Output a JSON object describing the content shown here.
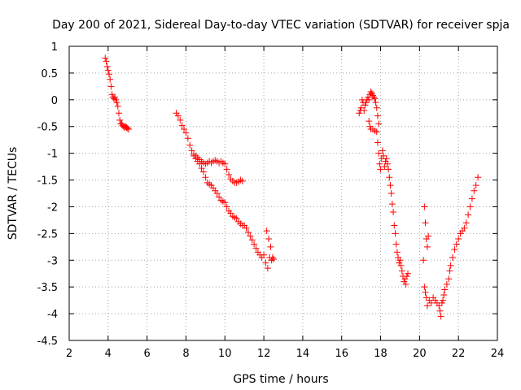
{
  "chart_data": {
    "type": "scatter",
    "title": "Day 200 of 2021, Sidereal Day-to-day VTEC variation (SDTVAR) for receiver spja",
    "xlabel": "GPS time / hours",
    "ylabel": "SDTVAR / TECUs",
    "xlim": [
      2,
      24
    ],
    "ylim": [
      -4.5,
      1
    ],
    "xticks": [
      "2",
      "4",
      "6",
      "8",
      "10",
      "12",
      "14",
      "16",
      "18",
      "20",
      "22",
      "24"
    ],
    "yticks": [
      "1",
      "0.5",
      "0",
      "-0.5",
      "-1",
      "-1.5",
      "-2",
      "-2.5",
      "-3",
      "-3.5",
      "-4",
      "-4.5"
    ],
    "grid": true,
    "marker": "plus",
    "color": "#ff0000",
    "series": [
      {
        "name": "segment-1",
        "points": [
          [
            3.85,
            0.78
          ],
          [
            3.9,
            0.72
          ],
          [
            3.95,
            0.62
          ],
          [
            4.0,
            0.55
          ],
          [
            4.05,
            0.48
          ],
          [
            4.1,
            0.38
          ],
          [
            4.15,
            0.25
          ],
          [
            4.2,
            0.1
          ],
          [
            4.25,
            0.05
          ],
          [
            4.3,
            0.02
          ],
          [
            4.35,
            0.05
          ],
          [
            4.4,
            0.0
          ],
          [
            4.45,
            -0.05
          ],
          [
            4.5,
            -0.12
          ],
          [
            4.55,
            -0.25
          ],
          [
            4.6,
            -0.38
          ],
          [
            4.65,
            -0.45
          ],
          [
            4.7,
            -0.45
          ],
          [
            4.75,
            -0.48
          ],
          [
            4.8,
            -0.5
          ],
          [
            4.85,
            -0.52
          ],
          [
            4.9,
            -0.5
          ],
          [
            4.95,
            -0.52
          ],
          [
            5.0,
            -0.53
          ],
          [
            5.05,
            -0.55
          ]
        ]
      },
      {
        "name": "segment-2",
        "points": [
          [
            7.5,
            -0.25
          ],
          [
            7.6,
            -0.3
          ],
          [
            7.7,
            -0.38
          ],
          [
            7.8,
            -0.48
          ],
          [
            7.9,
            -0.55
          ],
          [
            8.0,
            -0.62
          ],
          [
            8.1,
            -0.72
          ],
          [
            8.2,
            -0.85
          ],
          [
            8.3,
            -0.95
          ],
          [
            8.4,
            -1.02
          ],
          [
            8.5,
            -1.05
          ],
          [
            8.6,
            -1.08
          ],
          [
            8.7,
            -1.12
          ],
          [
            8.8,
            -1.15
          ],
          [
            8.9,
            -1.18
          ],
          [
            9.0,
            -1.2
          ],
          [
            9.1,
            -1.18
          ],
          [
            9.2,
            -1.15
          ],
          [
            9.3,
            -1.18
          ],
          [
            9.4,
            -1.15
          ],
          [
            9.5,
            -1.13
          ],
          [
            9.6,
            -1.15
          ],
          [
            9.7,
            -1.18
          ],
          [
            9.8,
            -1.15
          ],
          [
            9.9,
            -1.18
          ],
          [
            10.0,
            -1.2
          ],
          [
            10.1,
            -1.3
          ],
          [
            10.2,
            -1.4
          ],
          [
            10.3,
            -1.48
          ],
          [
            10.4,
            -1.52
          ],
          [
            10.5,
            -1.55
          ],
          [
            10.6,
            -1.55
          ],
          [
            10.7,
            -1.53
          ],
          [
            10.8,
            -1.5
          ],
          [
            10.9,
            -1.52
          ],
          [
            8.4,
            -1.05
          ],
          [
            8.5,
            -1.1
          ],
          [
            8.6,
            -1.15
          ],
          [
            8.7,
            -1.2
          ],
          [
            8.8,
            -1.28
          ],
          [
            8.9,
            -1.35
          ],
          [
            9.0,
            -1.45
          ],
          [
            9.1,
            -1.55
          ],
          [
            9.2,
            -1.58
          ],
          [
            9.3,
            -1.6
          ],
          [
            9.4,
            -1.65
          ],
          [
            9.5,
            -1.7
          ],
          [
            9.6,
            -1.75
          ],
          [
            9.7,
            -1.82
          ],
          [
            9.8,
            -1.88
          ],
          [
            9.9,
            -1.9
          ],
          [
            10.0,
            -1.92
          ],
          [
            10.1,
            -2.0
          ],
          [
            10.2,
            -2.08
          ],
          [
            10.3,
            -2.12
          ],
          [
            10.4,
            -2.18
          ],
          [
            10.5,
            -2.2
          ],
          [
            10.6,
            -2.22
          ],
          [
            10.7,
            -2.28
          ],
          [
            10.8,
            -2.32
          ],
          [
            10.9,
            -2.35
          ],
          [
            11.0,
            -2.35
          ],
          [
            11.1,
            -2.4
          ],
          [
            11.2,
            -2.48
          ],
          [
            11.3,
            -2.55
          ],
          [
            11.4,
            -2.62
          ],
          [
            11.5,
            -2.7
          ],
          [
            11.6,
            -2.78
          ],
          [
            11.7,
            -2.85
          ],
          [
            11.8,
            -2.9
          ],
          [
            11.9,
            -2.95
          ],
          [
            12.0,
            -2.9
          ],
          [
            12.1,
            -3.05
          ],
          [
            12.15,
            -2.45
          ],
          [
            12.2,
            -3.15
          ],
          [
            12.25,
            -2.6
          ],
          [
            12.3,
            -2.95
          ],
          [
            12.35,
            -2.75
          ],
          [
            12.4,
            -3.0
          ],
          [
            12.45,
            -2.95
          ],
          [
            12.5,
            -2.98
          ]
        ]
      },
      {
        "name": "segment-3",
        "points": [
          [
            16.9,
            -0.25
          ],
          [
            16.95,
            -0.2
          ],
          [
            17.0,
            -0.15
          ],
          [
            17.05,
            0.0
          ],
          [
            17.1,
            -0.05
          ],
          [
            17.15,
            -0.2
          ],
          [
            17.2,
            -0.1
          ],
          [
            17.25,
            -0.05
          ],
          [
            17.3,
            0.0
          ],
          [
            17.35,
            0.05
          ],
          [
            17.4,
            0.0
          ],
          [
            17.45,
            0.1
          ],
          [
            17.5,
            0.15
          ],
          [
            17.55,
            0.12
          ],
          [
            17.6,
            0.08
          ],
          [
            17.65,
            0.05
          ],
          [
            17.7,
            0.02
          ],
          [
            17.75,
            -0.05
          ],
          [
            17.8,
            -0.15
          ],
          [
            17.85,
            -0.3
          ],
          [
            17.9,
            -0.45
          ],
          [
            17.4,
            -0.4
          ],
          [
            17.45,
            -0.5
          ],
          [
            17.5,
            -0.55
          ],
          [
            17.6,
            -0.55
          ],
          [
            17.7,
            -0.58
          ],
          [
            17.8,
            -0.6
          ],
          [
            17.85,
            -0.8
          ],
          [
            17.9,
            -1.0
          ],
          [
            17.95,
            -1.2
          ],
          [
            18.0,
            -1.3
          ],
          [
            18.05,
            -1.1
          ],
          [
            18.1,
            -0.95
          ],
          [
            18.15,
            -1.05
          ],
          [
            18.2,
            -1.25
          ],
          [
            18.25,
            -1.15
          ],
          [
            18.3,
            -1.1
          ],
          [
            18.35,
            -1.2
          ],
          [
            18.4,
            -1.3
          ],
          [
            18.45,
            -1.45
          ],
          [
            18.5,
            -1.6
          ],
          [
            18.55,
            -1.75
          ],
          [
            18.6,
            -1.95
          ],
          [
            18.65,
            -2.1
          ],
          [
            18.7,
            -2.35
          ],
          [
            18.75,
            -2.5
          ],
          [
            18.8,
            -2.7
          ],
          [
            18.85,
            -2.85
          ],
          [
            18.9,
            -2.95
          ],
          [
            18.95,
            -3.05
          ],
          [
            19.0,
            -3.0
          ],
          [
            19.05,
            -3.1
          ],
          [
            19.1,
            -3.2
          ],
          [
            19.15,
            -3.3
          ],
          [
            19.2,
            -3.4
          ],
          [
            19.25,
            -3.35
          ],
          [
            19.3,
            -3.45
          ],
          [
            19.35,
            -3.3
          ],
          [
            19.4,
            -3.25
          ],
          [
            20.25,
            -2.0
          ],
          [
            20.3,
            -2.3
          ],
          [
            20.35,
            -2.6
          ],
          [
            20.4,
            -2.75
          ],
          [
            20.45,
            -2.55
          ],
          [
            20.2,
            -3.0
          ],
          [
            20.25,
            -3.5
          ],
          [
            20.3,
            -3.6
          ],
          [
            20.35,
            -3.7
          ],
          [
            20.4,
            -3.85
          ],
          [
            20.5,
            -3.75
          ],
          [
            20.6,
            -3.8
          ],
          [
            20.7,
            -3.7
          ],
          [
            20.8,
            -3.75
          ],
          [
            20.9,
            -3.8
          ],
          [
            21.0,
            -3.85
          ],
          [
            21.05,
            -3.95
          ],
          [
            21.1,
            -4.05
          ],
          [
            21.15,
            -3.8
          ],
          [
            21.2,
            -3.75
          ],
          [
            21.25,
            -3.65
          ],
          [
            21.3,
            -3.55
          ],
          [
            21.4,
            -3.45
          ],
          [
            21.5,
            -3.35
          ],
          [
            21.55,
            -3.2
          ],
          [
            21.6,
            -3.1
          ],
          [
            21.7,
            -2.95
          ],
          [
            21.8,
            -2.8
          ],
          [
            21.9,
            -2.7
          ],
          [
            22.0,
            -2.6
          ],
          [
            22.1,
            -2.5
          ],
          [
            22.2,
            -2.45
          ],
          [
            22.3,
            -2.4
          ],
          [
            22.4,
            -2.3
          ],
          [
            22.5,
            -2.15
          ],
          [
            22.6,
            -2.0
          ],
          [
            22.7,
            -1.85
          ],
          [
            22.8,
            -1.7
          ],
          [
            22.9,
            -1.6
          ],
          [
            23.0,
            -1.45
          ]
        ]
      }
    ]
  }
}
